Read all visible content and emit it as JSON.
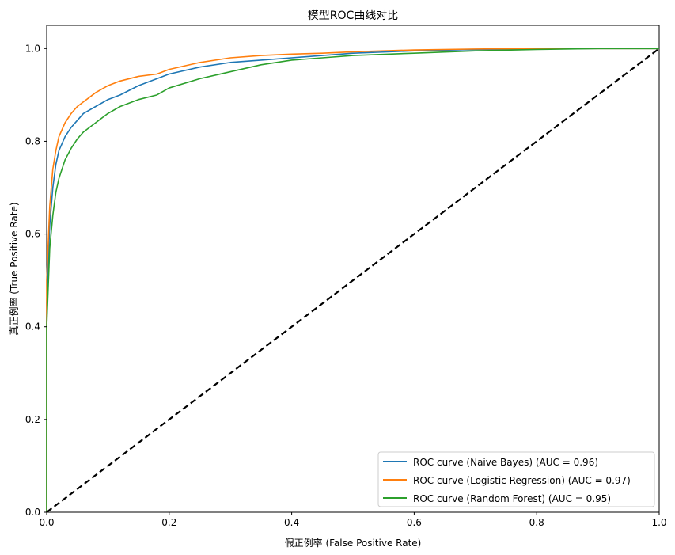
{
  "chart_data": {
    "type": "line",
    "title": "模型ROC曲线对比",
    "xlabel": "假正例率 (False Positive Rate)",
    "ylabel": "真正例率 (True Positive Rate)",
    "xlim": [
      0.0,
      1.0
    ],
    "ylim": [
      0.0,
      1.05
    ],
    "xticks": [
      "0.0",
      "0.2",
      "0.4",
      "0.6",
      "0.8",
      "1.0"
    ],
    "yticks": [
      "0.0",
      "0.2",
      "0.4",
      "0.6",
      "0.8",
      "1.0"
    ],
    "grid": false,
    "legend_position": "lower-right",
    "series": [
      {
        "name": "ROC curve (Naive Bayes) (AUC = 0.96)",
        "color": "#1f77b4",
        "style": "solid",
        "x": [
          0.0,
          0.0,
          0.005,
          0.01,
          0.015,
          0.02,
          0.03,
          0.04,
          0.05,
          0.06,
          0.08,
          0.1,
          0.12,
          0.15,
          0.18,
          0.2,
          0.25,
          0.3,
          0.35,
          0.4,
          0.45,
          0.5,
          0.6,
          0.7,
          0.8,
          0.9,
          1.0
        ],
        "y": [
          0.0,
          0.45,
          0.62,
          0.7,
          0.75,
          0.78,
          0.81,
          0.83,
          0.845,
          0.86,
          0.875,
          0.89,
          0.9,
          0.92,
          0.935,
          0.945,
          0.96,
          0.97,
          0.975,
          0.98,
          0.985,
          0.99,
          0.995,
          0.998,
          0.999,
          1.0,
          1.0
        ]
      },
      {
        "name": "ROC curve (Logistic Regression) (AUC = 0.97)",
        "color": "#ff7f0e",
        "style": "solid",
        "x": [
          0.0,
          0.0,
          0.005,
          0.01,
          0.015,
          0.02,
          0.03,
          0.04,
          0.05,
          0.06,
          0.08,
          0.1,
          0.12,
          0.15,
          0.18,
          0.2,
          0.25,
          0.3,
          0.35,
          0.4,
          0.45,
          0.5,
          0.6,
          0.7,
          0.8,
          0.9,
          1.0
        ],
        "y": [
          0.0,
          0.5,
          0.66,
          0.74,
          0.78,
          0.81,
          0.84,
          0.86,
          0.875,
          0.885,
          0.905,
          0.92,
          0.93,
          0.94,
          0.945,
          0.955,
          0.97,
          0.98,
          0.985,
          0.988,
          0.99,
          0.993,
          0.997,
          0.999,
          1.0,
          1.0,
          1.0
        ]
      },
      {
        "name": "ROC curve (Random Forest) (AUC = 0.95)",
        "color": "#2ca02c",
        "style": "solid",
        "x": [
          0.0,
          0.0,
          0.005,
          0.01,
          0.015,
          0.02,
          0.03,
          0.04,
          0.05,
          0.06,
          0.08,
          0.1,
          0.12,
          0.15,
          0.18,
          0.2,
          0.25,
          0.3,
          0.35,
          0.4,
          0.45,
          0.5,
          0.6,
          0.7,
          0.8,
          0.9,
          1.0
        ],
        "y": [
          0.0,
          0.4,
          0.57,
          0.64,
          0.69,
          0.72,
          0.76,
          0.785,
          0.805,
          0.82,
          0.84,
          0.86,
          0.875,
          0.89,
          0.9,
          0.915,
          0.935,
          0.95,
          0.965,
          0.975,
          0.98,
          0.985,
          0.99,
          0.995,
          0.998,
          1.0,
          1.0
        ]
      },
      {
        "name": "",
        "color": "#000000",
        "style": "dashed",
        "x": [
          0.0,
          1.0
        ],
        "y": [
          0.0,
          1.0
        ]
      }
    ]
  }
}
